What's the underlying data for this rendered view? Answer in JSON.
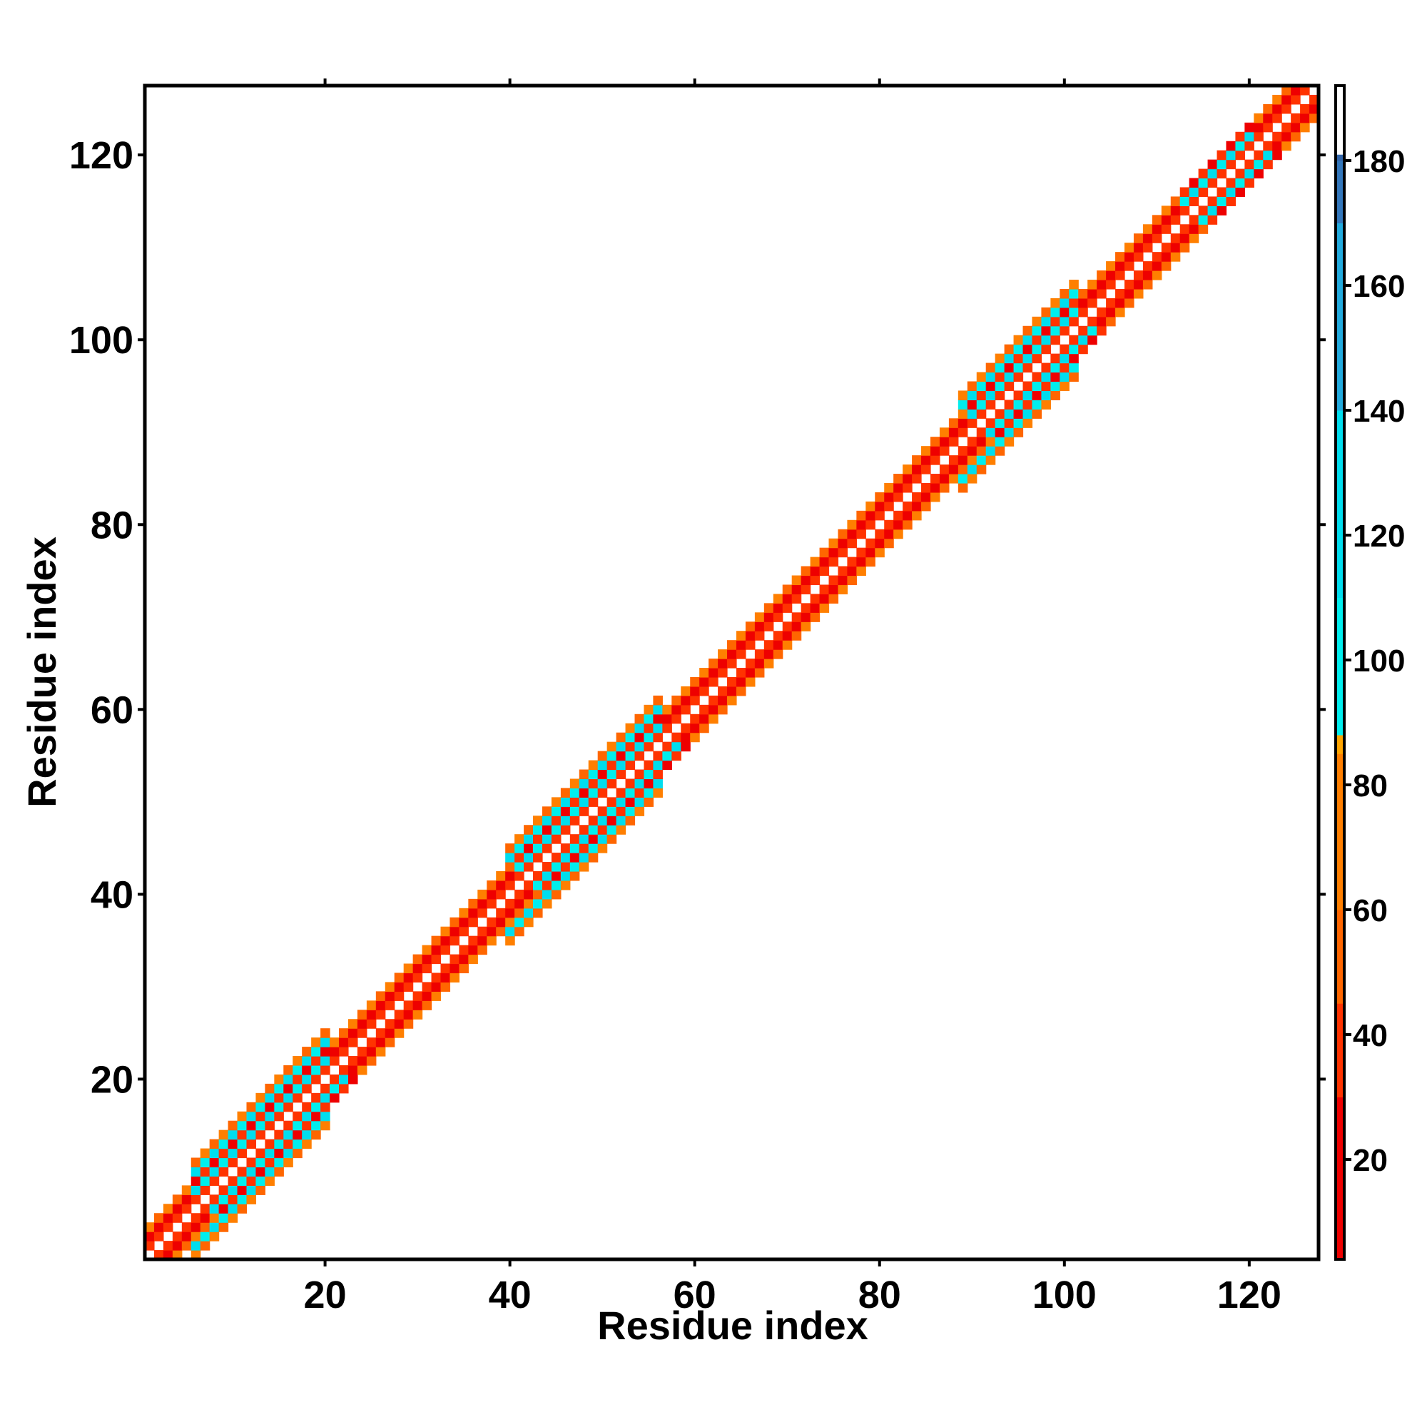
{
  "chart_data": {
    "type": "heatmap",
    "xlabel": "Residue index",
    "ylabel": "Residue index",
    "xlim": [
      1,
      127
    ],
    "ylim": [
      1,
      127
    ],
    "xticks": [
      20,
      40,
      60,
      80,
      100,
      120
    ],
    "yticks": [
      20,
      40,
      60,
      80,
      100,
      120
    ],
    "colorbar": {
      "range": [
        4,
        192
      ],
      "ticks": [
        20,
        40,
        60,
        80,
        100,
        120,
        140,
        160,
        180
      ],
      "stops": [
        {
          "value": 4,
          "color": "#ee0000"
        },
        {
          "value": 30,
          "color": "#ff3300"
        },
        {
          "value": 45,
          "color": "#ff6600"
        },
        {
          "value": 60,
          "color": "#ff7f00"
        },
        {
          "value": 85,
          "color": "#ffa500"
        },
        {
          "value": 88,
          "color": "#00eeee"
        },
        {
          "value": 110,
          "color": "#00ddee"
        },
        {
          "value": 140,
          "color": "#22aadd"
        },
        {
          "value": 170,
          "color": "#3377bb"
        },
        {
          "value": 180,
          "color": "#3366aa"
        },
        {
          "value": 181,
          "color": "#ffffff"
        },
        {
          "value": 192,
          "color": "#ffffff"
        }
      ]
    },
    "band": {
      "default_half_width": 3,
      "wide_regions": [
        {
          "from": 6,
          "to": 20,
          "half_width": 5
        },
        {
          "from": 40,
          "to": 56,
          "half_width": 5
        },
        {
          "from": 89,
          "to": 101,
          "half_width": 5
        },
        {
          "from": 113,
          "to": 120,
          "half_width": 3
        }
      ],
      "sheet_regions": [
        {
          "from": 6,
          "to": 20
        },
        {
          "from": 41,
          "to": 56
        },
        {
          "from": 90,
          "to": 101
        },
        {
          "from": 113,
          "to": 120
        }
      ],
      "value_pattern": {
        "diagonal": null,
        "offset_1": 45,
        "offset_2": 18,
        "offset_3": 60,
        "offset_4": 110,
        "offset_5": 60,
        "sheet_offset_2": 105,
        "sheet_offset_3": 25
      }
    }
  }
}
